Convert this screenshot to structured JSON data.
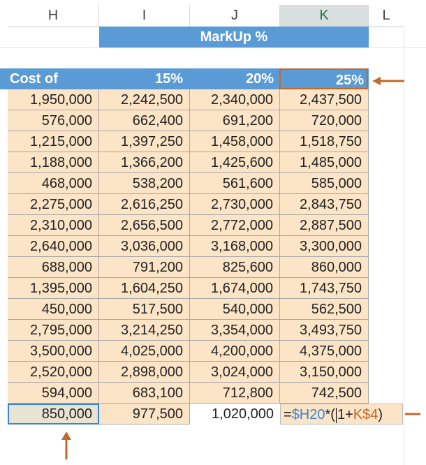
{
  "columns": [
    "H",
    "I",
    "J",
    "K",
    "L"
  ],
  "banner": "MarkUp %",
  "header": {
    "cost_of_sales": "Cost of Sales",
    "p15": "15%",
    "p20": "20%",
    "p25": "25%"
  },
  "rows": [
    [
      "1,950,000",
      "2,242,500",
      "2,340,000",
      "2,437,500"
    ],
    [
      "576,000",
      "662,400",
      "691,200",
      "720,000"
    ],
    [
      "1,215,000",
      "1,397,250",
      "1,458,000",
      "1,518,750"
    ],
    [
      "1,188,000",
      "1,366,200",
      "1,425,600",
      "1,485,000"
    ],
    [
      "468,000",
      "538,200",
      "561,600",
      "585,000"
    ],
    [
      "2,275,000",
      "2,616,250",
      "2,730,000",
      "2,843,750"
    ],
    [
      "2,310,000",
      "2,656,500",
      "2,772,000",
      "2,887,500"
    ],
    [
      "2,640,000",
      "3,036,000",
      "3,168,000",
      "3,300,000"
    ],
    [
      "688,000",
      "791,200",
      "825,600",
      "860,000"
    ],
    [
      "1,395,000",
      "1,604,250",
      "1,674,000",
      "1,743,750"
    ],
    [
      "450,000",
      "517,500",
      "540,000",
      "562,500"
    ],
    [
      "2,795,000",
      "3,214,250",
      "3,354,000",
      "3,493,750"
    ],
    [
      "3,500,000",
      "4,025,000",
      "4,200,000",
      "4,375,000"
    ],
    [
      "2,520,000",
      "2,898,000",
      "3,024,000",
      "3,150,000"
    ],
    [
      "594,000",
      "683,100",
      "712,800",
      "742,500"
    ]
  ],
  "last_row": {
    "h": "850,000",
    "i": "977,500",
    "j": "1,020,000",
    "formula_eq": "=",
    "formula_ref1": "$H20",
    "formula_mid": "*(",
    "formula_one": "1+",
    "formula_ref2": "K$4",
    "formula_end": ")"
  },
  "colors": {
    "header_blue": "#5b9bd5",
    "cell_fill": "#fce4c6",
    "arrow": "#c0692b",
    "selection_blue": "#3c83d6"
  }
}
